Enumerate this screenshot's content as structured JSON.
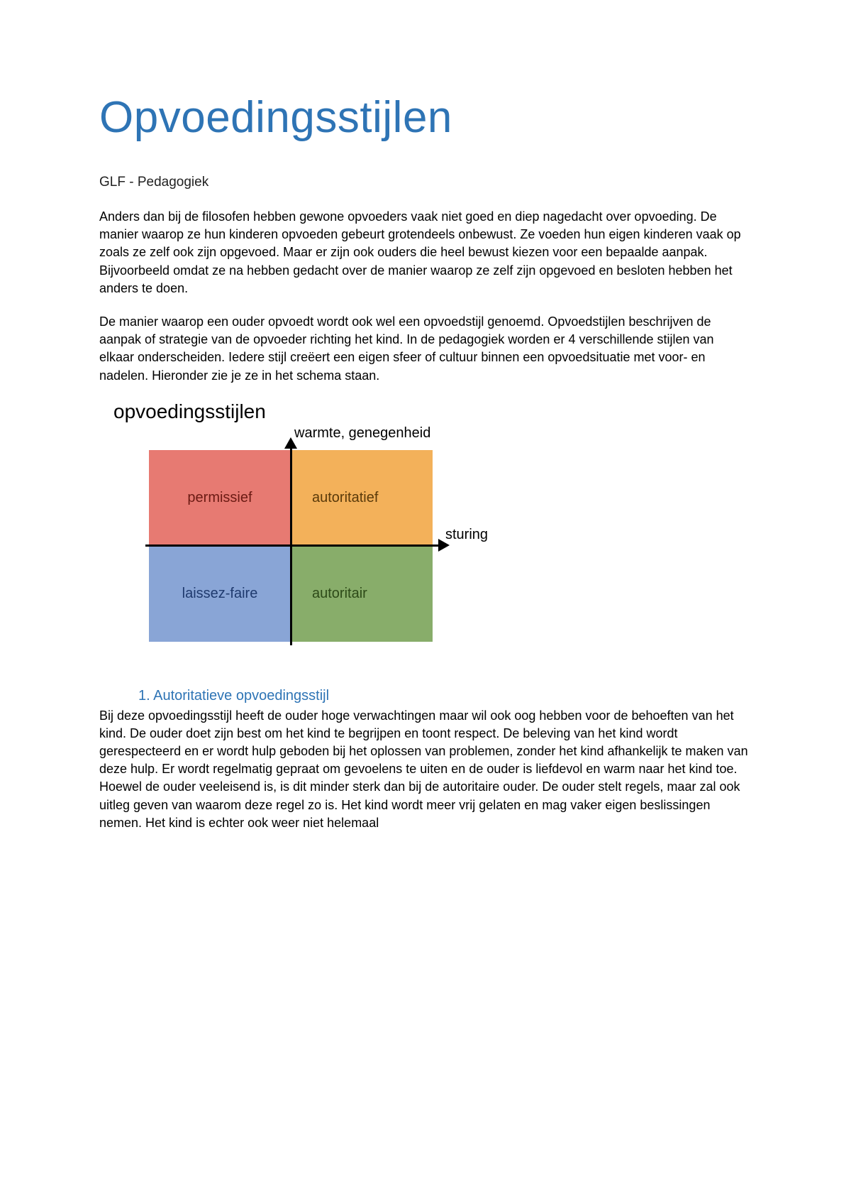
{
  "title": "Opvoedingsstijlen",
  "subtitle": "GLF - Pedagogiek",
  "paragraph1": "Anders dan bij de filosofen hebben gewone opvoeders vaak niet goed en diep nagedacht over opvoeding. De manier waarop ze hun kinderen opvoeden gebeurt grotendeels onbewust. Ze voeden hun eigen kinderen vaak op zoals ze zelf ook zijn opgevoed. Maar er zijn ook ouders die heel bewust kiezen voor een bepaalde aanpak. Bijvoorbeeld omdat ze na hebben gedacht over de manier waarop ze zelf zijn opgevoed en besloten hebben het anders te doen.",
  "paragraph2": "De manier waarop een ouder opvoedt wordt ook wel een opvoedstijl genoemd. Opvoedstijlen beschrijven de aanpak of strategie van de opvoeder richting het kind. In de pedagogiek worden er 4 verschillende stijlen van elkaar onderscheiden. Iedere stijl creëert een eigen sfeer of cultuur binnen een opvoedsituatie met voor- en nadelen. Hieronder zie je ze in het schema staan.",
  "diagram": {
    "title": "opvoedingsstijlen",
    "y_axis_label": "warmte, genegenheid",
    "x_axis_label": "sturing",
    "quadrants": {
      "top_left": {
        "label": "permissief",
        "bg": "#e77a72",
        "fg": "#6b1a13"
      },
      "top_right": {
        "label": "autoritatief",
        "bg": "#f3b15a",
        "fg": "#5a3a0a"
      },
      "bottom_left": {
        "label": "laissez-faire",
        "bg": "#89a5d6",
        "fg": "#1f3a6e"
      },
      "bottom_right": {
        "label": "autoritair",
        "bg": "#88ad6a",
        "fg": "#2d4a18"
      }
    },
    "axis_color": "#000000"
  },
  "section1": {
    "heading": "1.  Autoritatieve opvoedingsstijl",
    "body": "Bij deze opvoedingsstijl heeft de ouder hoge verwachtingen maar wil ook oog hebben voor de behoeften van het kind. De ouder doet zijn best om het kind te begrijpen en toont respect. De beleving van het kind wordt gerespecteerd en er wordt hulp geboden bij het oplossen van problemen, zonder het kind afhankelijk te maken van deze hulp. Er wordt regelmatig gepraat om gevoelens te uiten en de ouder is liefdevol en warm naar het kind toe. Hoewel de ouder veeleisend is, is dit minder sterk dan bij de autoritaire ouder. De ouder stelt regels, maar zal ook uitleg geven van waarom deze regel zo is. Het kind wordt meer vrij gelaten en mag vaker eigen beslissingen nemen. Het kind is echter ook weer niet helemaal"
  },
  "colors": {
    "title_color": "#2e74b5",
    "body_color": "#000000",
    "background": "#ffffff"
  }
}
